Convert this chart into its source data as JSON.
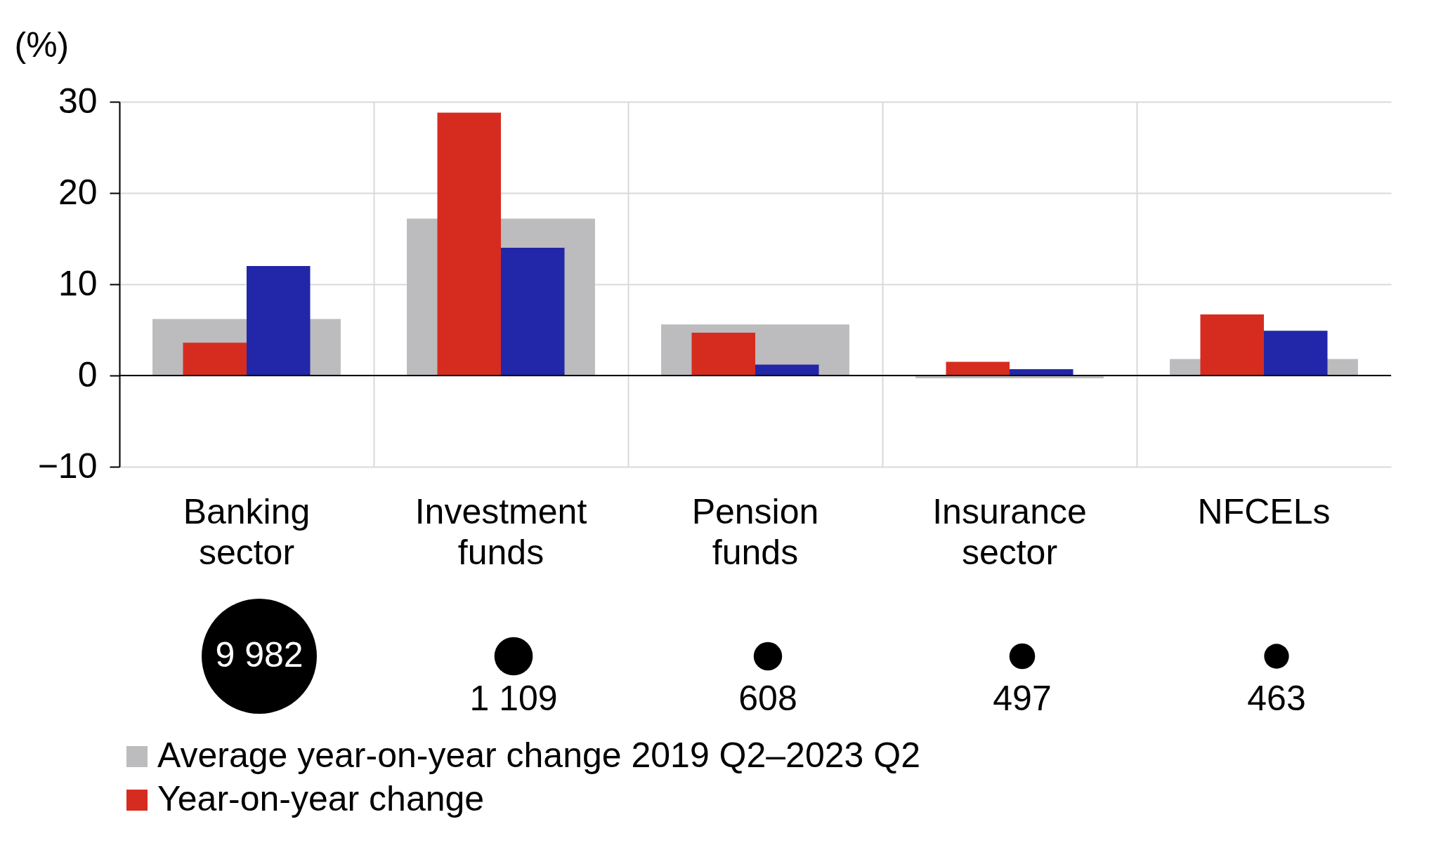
{
  "chart_data": [
    {
      "type": "bar",
      "ylabel": "(%)",
      "categories": [
        "Banking sector",
        "Investment funds",
        "Pension funds",
        "Insurance sector",
        "NFCELs"
      ],
      "series": [
        {
          "name": "Average year-on-year change 2019 Q2–2023 Q2",
          "color": "#bcbbbd",
          "values": [
            6.2,
            17.2,
            5.6,
            -0.3,
            1.8
          ]
        },
        {
          "name": "Year-on-year change",
          "color": "#d62c20",
          "values": [
            3.6,
            28.8,
            4.7,
            1.5,
            6.7
          ]
        },
        {
          "color": "#2226a8",
          "values": [
            12.0,
            14.0,
            1.2,
            0.7,
            4.9
          ]
        }
      ],
      "ylim": [
        -10,
        30
      ],
      "yticks": [
        -10,
        0,
        10,
        20,
        30
      ],
      "grid": true,
      "legend": "bottom"
    },
    {
      "type": "other",
      "categories": [
        null,
        null,
        null,
        null,
        null
      ],
      "values": [
        9982,
        1109,
        608,
        497,
        463
      ],
      "value_labels": [
        "9 982",
        "1 109",
        "608",
        "497",
        "463"
      ],
      "color": "#000000"
    }
  ]
}
